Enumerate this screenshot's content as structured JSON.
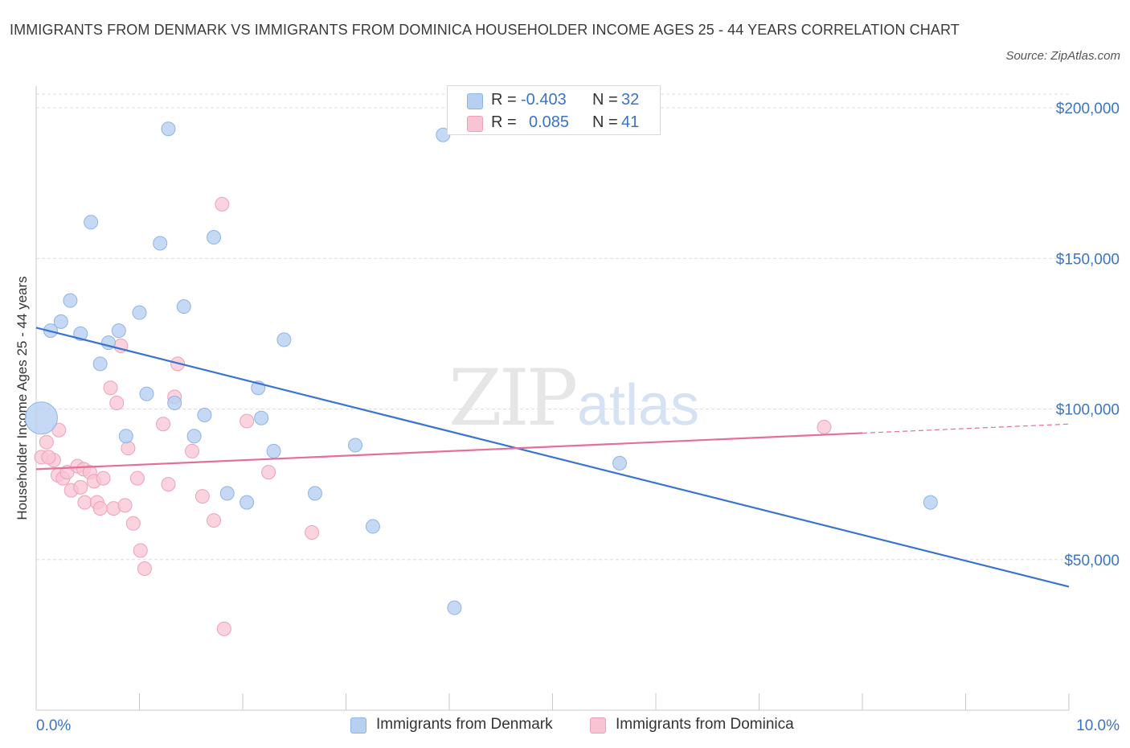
{
  "title": "IMMIGRANTS FROM DENMARK VS IMMIGRANTS FROM DOMINICA HOUSEHOLDER INCOME AGES 25 - 44 YEARS CORRELATION CHART",
  "source": "Source: ZipAtlas.com",
  "watermark": {
    "zip": "ZIP",
    "atlas": "atlas"
  },
  "legend": {
    "denmark": {
      "r_label": "R =",
      "r_value": "-0.403",
      "n_label": "N =",
      "n_value": "32"
    },
    "dominica": {
      "r_label": "R =",
      "r_value": "0.085",
      "n_label": "N =",
      "n_value": "41"
    }
  },
  "bottom_legend": {
    "denmark": "Immigrants from Denmark",
    "dominica": "Immigrants from Dominica"
  },
  "colors": {
    "denmark_fill": "#b7d0f2",
    "denmark_stroke": "#8fb4e6",
    "denmark_line": "#3a74d0",
    "dominica_fill": "#f8c4d4",
    "dominica_stroke": "#eda1b9",
    "dominica_line": "#e56f98",
    "axis_label": "#3a74c8"
  },
  "chart_data": {
    "type": "scatter",
    "title": "IMMIGRANTS FROM DENMARK VS IMMIGRANTS FROM DOMINICA HOUSEHOLDER INCOME AGES 25 - 44 YEARS CORRELATION CHART",
    "xlabel": "",
    "ylabel": "Householder Income Ages 25 - 44 years",
    "xlim": [
      0,
      10
    ],
    "ylim": [
      0,
      200000
    ],
    "x_tick_labels": {
      "min": "0.0%",
      "max": "10.0%"
    },
    "y_ticks": [
      {
        "value": 50000,
        "label": "$50,000"
      },
      {
        "value": 100000,
        "label": "$100,000"
      },
      {
        "value": 150000,
        "label": "$150,000"
      },
      {
        "value": 200000,
        "label": "$200,000"
      }
    ],
    "series": [
      {
        "name": "Immigrants from Denmark",
        "R": -0.403,
        "N": 32,
        "trend": {
          "x": [
            0.0,
            10.0
          ],
          "y": [
            127000,
            41000
          ]
        },
        "points": [
          {
            "x": 0.05,
            "y": 97000,
            "big": true
          },
          {
            "x": 0.14,
            "y": 126000
          },
          {
            "x": 0.24,
            "y": 129000
          },
          {
            "x": 0.33,
            "y": 136000
          },
          {
            "x": 0.43,
            "y": 125000
          },
          {
            "x": 0.53,
            "y": 162000
          },
          {
            "x": 0.62,
            "y": 115000
          },
          {
            "x": 0.7,
            "y": 122000
          },
          {
            "x": 0.8,
            "y": 126000
          },
          {
            "x": 0.87,
            "y": 91000
          },
          {
            "x": 1.0,
            "y": 132000
          },
          {
            "x": 1.07,
            "y": 105000
          },
          {
            "x": 1.2,
            "y": 155000
          },
          {
            "x": 1.28,
            "y": 193000
          },
          {
            "x": 1.34,
            "y": 102000
          },
          {
            "x": 1.43,
            "y": 134000
          },
          {
            "x": 1.53,
            "y": 91000
          },
          {
            "x": 1.63,
            "y": 98000
          },
          {
            "x": 1.72,
            "y": 157000
          },
          {
            "x": 1.85,
            "y": 72000
          },
          {
            "x": 2.04,
            "y": 69000
          },
          {
            "x": 2.15,
            "y": 107000
          },
          {
            "x": 2.18,
            "y": 97000
          },
          {
            "x": 2.3,
            "y": 86000
          },
          {
            "x": 2.4,
            "y": 123000
          },
          {
            "x": 2.7,
            "y": 72000
          },
          {
            "x": 3.09,
            "y": 88000
          },
          {
            "x": 3.26,
            "y": 61000
          },
          {
            "x": 3.94,
            "y": 191000
          },
          {
            "x": 4.05,
            "y": 34000
          },
          {
            "x": 5.65,
            "y": 82000
          },
          {
            "x": 8.66,
            "y": 69000
          }
        ]
      },
      {
        "name": "Immigrants from Dominica",
        "R": 0.085,
        "N": 41,
        "trend": {
          "x": [
            0.0,
            8.0
          ],
          "y": [
            80000,
            92000
          ]
        },
        "trend_dashed": {
          "x": [
            8.0,
            10.0
          ],
          "y": [
            92000,
            95000
          ]
        },
        "points": [
          {
            "x": 0.05,
            "y": 84000
          },
          {
            "x": 0.1,
            "y": 89000
          },
          {
            "x": 0.17,
            "y": 83000
          },
          {
            "x": 0.21,
            "y": 78000
          },
          {
            "x": 0.22,
            "y": 93000
          },
          {
            "x": 0.26,
            "y": 77000
          },
          {
            "x": 0.3,
            "y": 79000
          },
          {
            "x": 0.34,
            "y": 73000
          },
          {
            "x": 0.4,
            "y": 81000
          },
          {
            "x": 0.43,
            "y": 74000
          },
          {
            "x": 0.46,
            "y": 80000
          },
          {
            "x": 0.47,
            "y": 69000
          },
          {
            "x": 0.52,
            "y": 79000
          },
          {
            "x": 0.56,
            "y": 76000
          },
          {
            "x": 0.59,
            "y": 69000
          },
          {
            "x": 0.62,
            "y": 67000
          },
          {
            "x": 0.65,
            "y": 77000
          },
          {
            "x": 0.72,
            "y": 107000
          },
          {
            "x": 0.75,
            "y": 67000
          },
          {
            "x": 0.78,
            "y": 102000
          },
          {
            "x": 0.82,
            "y": 121000
          },
          {
            "x": 0.86,
            "y": 68000
          },
          {
            "x": 0.89,
            "y": 87000
          },
          {
            "x": 0.94,
            "y": 62000
          },
          {
            "x": 0.98,
            "y": 77000
          },
          {
            "x": 1.01,
            "y": 53000
          },
          {
            "x": 1.05,
            "y": 47000
          },
          {
            "x": 1.23,
            "y": 95000
          },
          {
            "x": 1.28,
            "y": 75000
          },
          {
            "x": 1.34,
            "y": 104000
          },
          {
            "x": 1.37,
            "y": 115000
          },
          {
            "x": 1.51,
            "y": 86000
          },
          {
            "x": 1.61,
            "y": 71000
          },
          {
            "x": 1.72,
            "y": 63000
          },
          {
            "x": 1.8,
            "y": 168000
          },
          {
            "x": 1.82,
            "y": 27000
          },
          {
            "x": 2.04,
            "y": 96000
          },
          {
            "x": 2.25,
            "y": 79000
          },
          {
            "x": 2.67,
            "y": 59000
          },
          {
            "x": 7.63,
            "y": 94000
          },
          {
            "x": 0.12,
            "y": 84000
          }
        ]
      }
    ]
  }
}
